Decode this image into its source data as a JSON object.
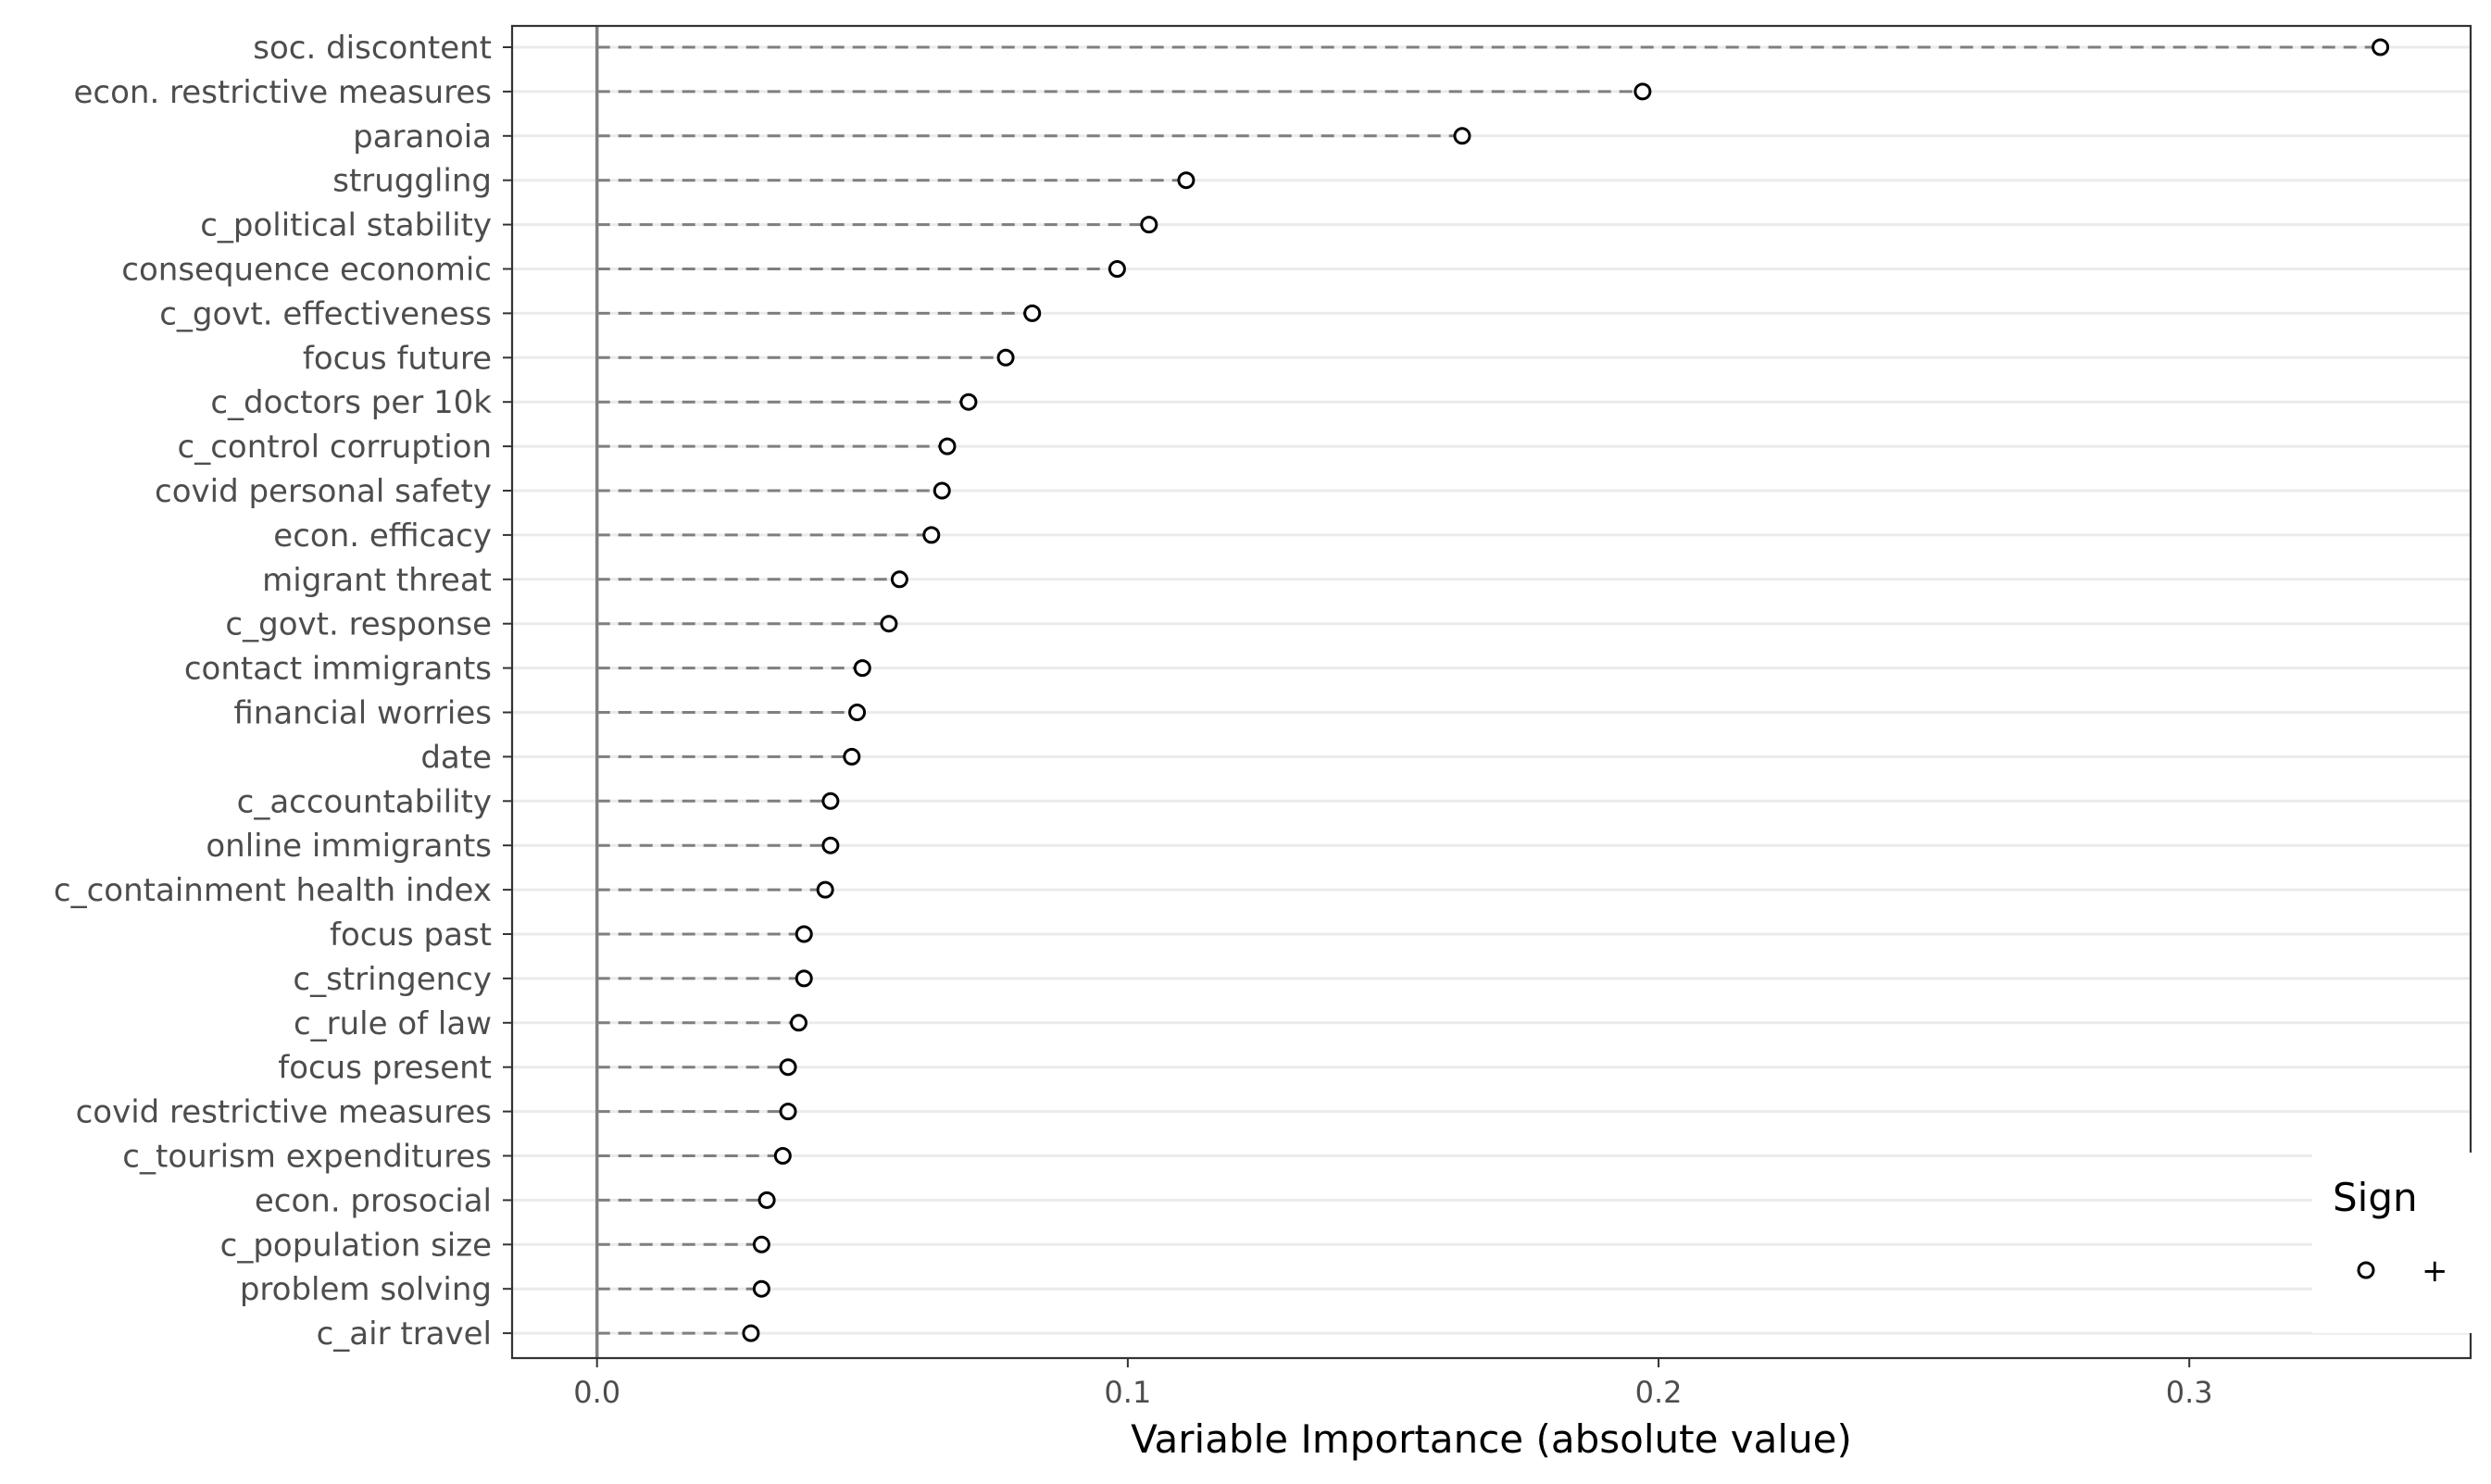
{
  "chart_data": {
    "type": "scatter",
    "subtype": "dot-plot (lollipop) with dashed leader lines",
    "title": "",
    "xlabel": "Variable Importance (absolute value)",
    "ylabel": "",
    "xlim": [
      -0.016,
      0.353
    ],
    "x_ticks": [
      0.0,
      0.1,
      0.2,
      0.3
    ],
    "x_tick_labels": [
      "0.0",
      "0.1",
      "0.2",
      "0.3"
    ],
    "grid": "horizontal major lines",
    "reference_line_x": 0.0,
    "legend": {
      "title": "Sign",
      "position": "right",
      "entries": [
        {
          "symbol": "open-circle",
          "label": "+"
        }
      ]
    },
    "colors": {
      "points": "#000000",
      "leader": "#7f7f7f",
      "grid": "#ebebeb",
      "panel_border": "#333333",
      "zero_line": "#808080"
    },
    "categories": [
      "soc. discontent",
      "econ. restrictive measures",
      "paranoia",
      "struggling",
      "c_political stability",
      "consequence economic",
      "c_govt. effectiveness",
      "focus future",
      "c_doctors per 10k",
      "c_control corruption",
      "covid personal safety",
      "econ. efficacy",
      "migrant threat",
      "c_govt. response",
      "contact immigrants",
      "financial worries",
      "date",
      "c_accountability",
      "online immigrants",
      "c_containment health index",
      "focus past",
      "c_stringency",
      "c_rule of law",
      "focus present",
      "covid restrictive measures",
      "c_tourism expenditures",
      "econ. prosocial",
      "c_population size",
      "problem solving",
      "c_air travel"
    ],
    "values": [
      0.336,
      0.197,
      0.163,
      0.111,
      0.104,
      0.098,
      0.082,
      0.077,
      0.07,
      0.066,
      0.065,
      0.063,
      0.057,
      0.055,
      0.05,
      0.049,
      0.048,
      0.044,
      0.044,
      0.043,
      0.039,
      0.039,
      0.038,
      0.036,
      0.036,
      0.035,
      0.032,
      0.031,
      0.031,
      0.029
    ]
  }
}
